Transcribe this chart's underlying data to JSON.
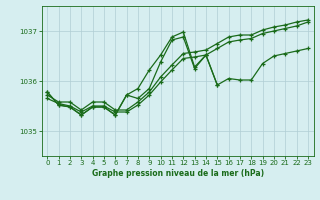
{
  "title": "Graphe pression niveau de la mer (hPa)",
  "background_color": "#d6eef0",
  "grid_color": "#b0cdd4",
  "line_color": "#1a6b1a",
  "ylim": [
    1034.5,
    1037.5
  ],
  "xlim": [
    -0.5,
    23.5
  ],
  "yticks": [
    1035,
    1036,
    1037
  ],
  "xticks": [
    0,
    1,
    2,
    3,
    4,
    5,
    6,
    7,
    8,
    9,
    10,
    11,
    12,
    13,
    14,
    15,
    16,
    17,
    18,
    19,
    20,
    21,
    22,
    23
  ],
  "slow1_x": [
    0,
    1,
    2,
    3,
    4,
    5,
    6,
    7,
    8,
    9,
    10,
    11,
    12,
    13,
    14,
    15,
    16,
    17,
    18,
    19,
    20,
    21,
    22,
    23
  ],
  "slow1_y": [
    1035.65,
    1035.55,
    1035.5,
    1035.38,
    1035.5,
    1035.5,
    1035.38,
    1035.38,
    1035.52,
    1035.72,
    1035.98,
    1036.22,
    1036.45,
    1036.48,
    1036.52,
    1036.65,
    1036.78,
    1036.82,
    1036.85,
    1036.95,
    1037.0,
    1037.05,
    1037.1,
    1037.18
  ],
  "slow2_x": [
    0,
    1,
    2,
    3,
    4,
    5,
    6,
    7,
    8,
    9,
    10,
    11,
    12,
    13,
    14,
    15,
    16,
    17,
    18,
    19,
    20,
    21,
    22,
    23
  ],
  "slow2_y": [
    1035.72,
    1035.58,
    1035.58,
    1035.42,
    1035.58,
    1035.58,
    1035.42,
    1035.42,
    1035.58,
    1035.78,
    1036.08,
    1036.32,
    1036.55,
    1036.58,
    1036.62,
    1036.75,
    1036.88,
    1036.92,
    1036.92,
    1037.02,
    1037.08,
    1037.12,
    1037.18,
    1037.22
  ],
  "peak_x": [
    0,
    1,
    2,
    3,
    4,
    5,
    6,
    7,
    8,
    9,
    10,
    11,
    12,
    13,
    14,
    15,
    16,
    17,
    18,
    19,
    20,
    21,
    22,
    23
  ],
  "peak_y": [
    1035.78,
    1035.52,
    1035.48,
    1035.32,
    1035.48,
    1035.48,
    1035.32,
    1035.72,
    1035.65,
    1035.85,
    1036.38,
    1036.82,
    1036.88,
    1036.25,
    1036.52,
    1035.92,
    1036.05,
    1036.02,
    1036.02,
    1036.35,
    1036.5,
    1036.55,
    1036.6,
    1036.65
  ],
  "bigpeak_x": [
    0,
    1,
    2,
    3,
    4,
    5,
    6,
    7,
    8,
    9,
    10,
    11,
    12,
    13,
    14,
    15
  ],
  "bigpeak_y": [
    1035.78,
    1035.52,
    1035.48,
    1035.32,
    1035.48,
    1035.48,
    1035.32,
    1035.72,
    1035.85,
    1036.22,
    1036.52,
    1036.88,
    1036.98,
    1036.28,
    1036.52,
    1035.92
  ]
}
